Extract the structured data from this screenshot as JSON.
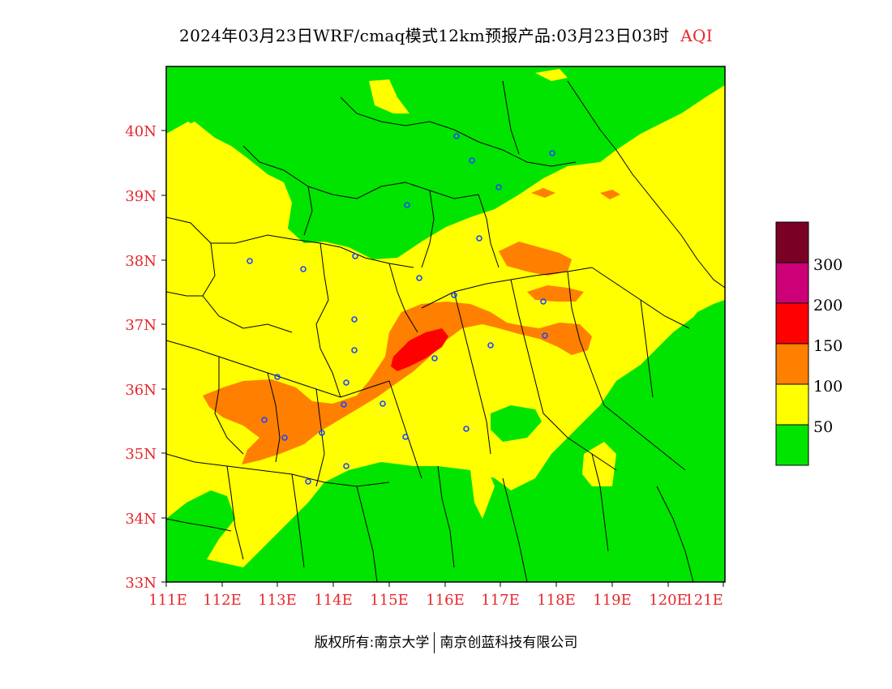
{
  "title": {
    "main": "2024年03月23日WRF/cmaq模式12km预报产品:03月23日03时",
    "variable": "AQI"
  },
  "axes": {
    "lat_labels": [
      "40N",
      "39N",
      "38N",
      "37N",
      "36N",
      "35N",
      "34N",
      "33N"
    ],
    "lon_labels": [
      "111E",
      "112E",
      "113E",
      "114E",
      "115E",
      "116E",
      "117E",
      "118E",
      "119E",
      "120E",
      "121E"
    ],
    "lon_range": [
      111,
      121.5
    ],
    "lat_range": [
      33,
      41
    ]
  },
  "legend": {
    "labels": [
      "300",
      "200",
      "150",
      "100",
      "50"
    ],
    "colors": [
      "#7a0026",
      "#cc0077",
      "#ff0000",
      "#ff7f00",
      "#ffff00",
      "#00e400"
    ]
  },
  "footer": {
    "copyright": "版权所有:南京大学",
    "company": "南京创蓝科技有限公司"
  },
  "colors": {
    "good": "#00e400",
    "moderate": "#ffff00",
    "sensitive": "#ff7f00",
    "unhealthy": "#ff0000",
    "label_red": "#e8262a"
  }
}
